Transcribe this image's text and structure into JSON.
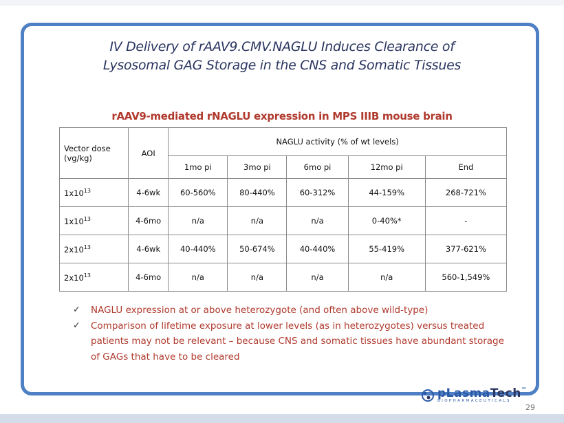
{
  "slide": {
    "title_line1": "IV Delivery of rAAV9.CMV.NAGLU Induces Clearance of",
    "title_line2": "Lysosomal GAG Storage in the CNS and Somatic Tissues",
    "subtitle": "rAAV9-mediated rNAGLU expression in MPS IIIB mouse brain",
    "page_number": "29"
  },
  "table": {
    "header": {
      "vector_dose": "Vector dose (vg/kg)",
      "aoi": "AOI",
      "activity_group": "NAGLU activity (% of wt levels)",
      "timepoints": [
        "1mo pi",
        "3mo pi",
        "6mo pi",
        "12mo pi",
        "End"
      ]
    },
    "rows": [
      {
        "dose_base": "1x10",
        "dose_exp": "13",
        "aoi": "4-6wk",
        "values": [
          "60-560%",
          "80-440%",
          "60-312%",
          "44-159%",
          "268-721%"
        ]
      },
      {
        "dose_base": "1x10",
        "dose_exp": "13",
        "aoi": "4-6mo",
        "values": [
          "n/a",
          "n/a",
          "n/a",
          "0-40%*",
          "-"
        ]
      },
      {
        "dose_base": "2x10",
        "dose_exp": "13",
        "aoi": "4-6wk",
        "values": [
          "40-440%",
          "50-674%",
          "40-440%",
          "55-419%",
          "377-621%"
        ]
      },
      {
        "dose_base": "2x10",
        "dose_exp": "13",
        "aoi": "4-6mo",
        "values": [
          "n/a",
          "n/a",
          "n/a",
          "n/a",
          "560-1,549%"
        ]
      }
    ]
  },
  "bullets": [
    {
      "mark": "✓",
      "text": "NAGLU expression at or above heterozygote (and often above wild-type)"
    },
    {
      "mark": "✓",
      "text": "Comparison of lifetime exposure at lower levels (as in heterozygotes) versus treated patients may not be relevant – because CNS and somatic tissues have abundant storage of GAGs that have to be cleared"
    }
  ],
  "logo": {
    "word_main": "pLasma",
    "word_accent": "Tech",
    "tm": "™",
    "sub": "BIOPHARMACEUTICALS"
  },
  "colors": {
    "frame": "#4f7fc4",
    "title": "#2a3560",
    "accent_red": "#b03a2e"
  }
}
